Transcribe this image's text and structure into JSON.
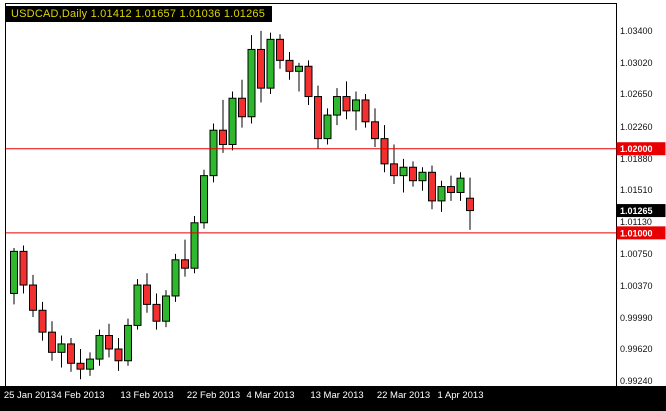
{
  "window": {
    "title": "USDCAD,Daily 1.01412 1.01657 1.01036 1.01265"
  },
  "colors": {
    "background": "#ffffff",
    "plot_border": "#000000",
    "title_bg": "#000000",
    "title_fg": "#dcd400",
    "bull": "#2eb82e",
    "bear": "#f23030",
    "wick": "#000000",
    "level_line": "#e80000",
    "level_tag_bg": "#e80000",
    "level_tag_fg": "#ffffff",
    "current_tag_bg": "#000000",
    "current_tag_fg": "#ffffff",
    "axis_text": "#111111",
    "bottom_bar_bg": "#000000",
    "bottom_bar_fg": "#ffffff"
  },
  "chart_data": {
    "type": "candlestick",
    "symbol": "USDCAD",
    "timeframe": "Daily",
    "ohlc_display": {
      "open": "1.01412",
      "high": "1.01657",
      "low": "1.01036",
      "close": "1.01265"
    },
    "ylim": [
      0.9918,
      1.0372
    ],
    "grid": false,
    "y_ticks": [
      "1.03400",
      "1.03020",
      "1.02650",
      "1.02260",
      "1.01880",
      "1.01510",
      "1.01130",
      "1.00750",
      "1.00370",
      "0.99990",
      "0.99620",
      "0.99240"
    ],
    "h_lines": [
      {
        "price": 1.02,
        "label": "1.02000"
      },
      {
        "price": 1.01,
        "label": "1.01000"
      }
    ],
    "current_price": {
      "price": 1.01265,
      "label": "1.01265"
    },
    "x_ticks": [
      {
        "index": 1,
        "label": "25 Jan 2013"
      },
      {
        "index": 7,
        "label": "4 Feb 2013"
      },
      {
        "index": 14,
        "label": "13 Feb 2013"
      },
      {
        "index": 21,
        "label": "22 Feb 2013"
      },
      {
        "index": 27,
        "label": "4 Mar 2013"
      },
      {
        "index": 34,
        "label": "13 Mar 2013"
      },
      {
        "index": 41,
        "label": "22 Mar 2013"
      },
      {
        "index": 47,
        "label": "1 Apr 2013"
      }
    ],
    "candles": [
      [
        1.0028,
        1.0082,
        1.0015,
        1.0078
      ],
      [
        1.0078,
        1.0085,
        1.0028,
        1.0038
      ],
      [
        1.0038,
        1.005,
        1.0,
        1.0008
      ],
      [
        1.0008,
        1.0018,
        0.9972,
        0.9982
      ],
      [
        0.9982,
        0.9995,
        0.9948,
        0.9958
      ],
      [
        0.9958,
        0.9978,
        0.994,
        0.9968
      ],
      [
        0.9968,
        0.9975,
        0.9935,
        0.9945
      ],
      [
        0.9945,
        0.9962,
        0.9926,
        0.9938
      ],
      [
        0.9938,
        0.9958,
        0.993,
        0.995
      ],
      [
        0.995,
        0.9985,
        0.9942,
        0.9978
      ],
      [
        0.9978,
        0.9992,
        0.9952,
        0.9962
      ],
      [
        0.9962,
        0.9975,
        0.9936,
        0.9948
      ],
      [
        0.9948,
        0.9998,
        0.9942,
        0.999
      ],
      [
        0.999,
        1.0045,
        0.9985,
        1.0038
      ],
      [
        1.0038,
        1.0052,
        1.0005,
        1.0015
      ],
      [
        1.0015,
        1.0028,
        0.9985,
        0.9995
      ],
      [
        0.9995,
        1.0032,
        0.9988,
        1.0025
      ],
      [
        1.0025,
        1.0075,
        1.0018,
        1.0068
      ],
      [
        1.0068,
        1.0092,
        1.0048,
        1.0058
      ],
      [
        1.0058,
        1.012,
        1.0052,
        1.0112
      ],
      [
        1.0112,
        1.0175,
        1.0105,
        1.0168
      ],
      [
        1.0168,
        1.023,
        1.016,
        1.0222
      ],
      [
        1.0222,
        1.0258,
        1.0195,
        1.0205
      ],
      [
        1.0205,
        1.0268,
        1.0198,
        1.026
      ],
      [
        1.026,
        1.0282,
        1.0225,
        1.0238
      ],
      [
        1.0238,
        1.0335,
        1.023,
        1.0318
      ],
      [
        1.0318,
        1.034,
        1.0255,
        1.0272
      ],
      [
        1.0272,
        1.0338,
        1.0265,
        1.033
      ],
      [
        1.033,
        1.0336,
        1.0295,
        1.0305
      ],
      [
        1.0305,
        1.0315,
        1.0282,
        1.0292
      ],
      [
        1.0292,
        1.0302,
        1.0268,
        1.0298
      ],
      [
        1.0298,
        1.0305,
        1.0252,
        1.0262
      ],
      [
        1.0262,
        1.0275,
        1.02,
        1.0212
      ],
      [
        1.0212,
        1.0248,
        1.0205,
        1.024
      ],
      [
        1.024,
        1.0272,
        1.0228,
        1.0262
      ],
      [
        1.0262,
        1.028,
        1.0235,
        1.0245
      ],
      [
        1.0245,
        1.0268,
        1.0222,
        1.0258
      ],
      [
        1.0258,
        1.0265,
        1.0225,
        1.0232
      ],
      [
        1.0232,
        1.0248,
        1.0202,
        1.0212
      ],
      [
        1.0212,
        1.0228,
        1.0172,
        1.0182
      ],
      [
        1.0182,
        1.0205,
        1.0158,
        1.0168
      ],
      [
        1.0168,
        1.0188,
        1.0148,
        1.0178
      ],
      [
        1.0178,
        1.0185,
        1.0155,
        1.0162
      ],
      [
        1.0162,
        1.0178,
        1.015,
        1.0172
      ],
      [
        1.0172,
        1.018,
        1.0128,
        1.0138
      ],
      [
        1.0138,
        1.0162,
        1.0125,
        1.0155
      ],
      [
        1.0155,
        1.0168,
        1.0138,
        1.0148
      ],
      [
        1.0148,
        1.0172,
        1.0138,
        1.0165
      ],
      [
        1.01412,
        1.01657,
        1.01036,
        1.01265
      ]
    ]
  }
}
